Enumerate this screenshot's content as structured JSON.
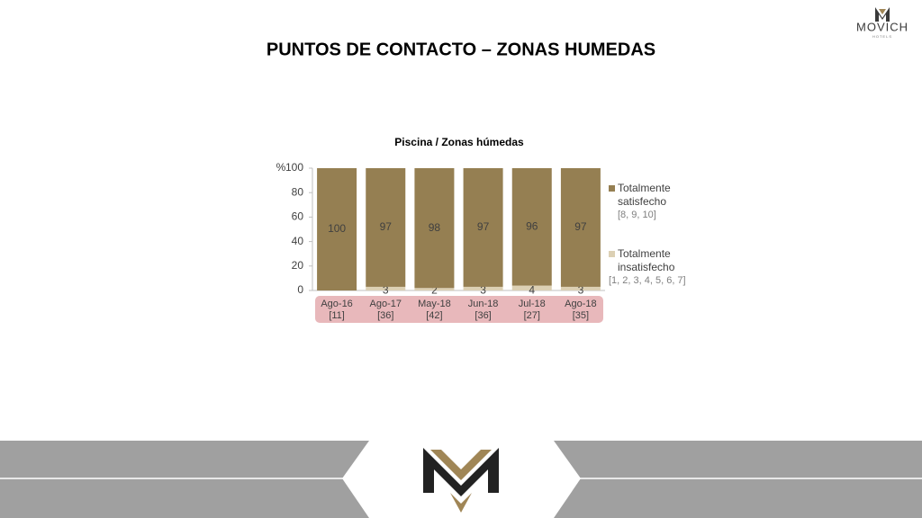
{
  "logo": {
    "name": "MOVICH",
    "tagline": "HOTELS"
  },
  "slide_title": "PUNTOS DE CONTACTO – ZONAS HUMEDAS",
  "chart_data": {
    "type": "stacked_bar",
    "title": "Piscina / Zonas húmedas",
    "y_label": "%",
    "categories": [
      "Ago-16",
      "Ago-17",
      "May-18",
      "Jun-18",
      "Jul-18",
      "Ago-18"
    ],
    "sample_sizes": [
      "[11]",
      "[36]",
      "[42]",
      "[36]",
      "[27]",
      "[35]"
    ],
    "series": [
      {
        "name": "Totalmente insatisfecho",
        "scale": "[1, 2, 3, 4, 5, 6, 7]",
        "color": "#dcd0b4",
        "values": [
          0,
          3,
          2,
          3,
          4,
          3
        ]
      },
      {
        "name": "Totalmente satisfecho",
        "scale": "[8, 9, 10]",
        "color": "#957f52",
        "values": [
          100,
          97,
          98,
          97,
          96,
          97
        ]
      }
    ],
    "ylim": [
      0,
      100
    ],
    "yticks": [
      0,
      20,
      40,
      60,
      80,
      100
    ]
  }
}
